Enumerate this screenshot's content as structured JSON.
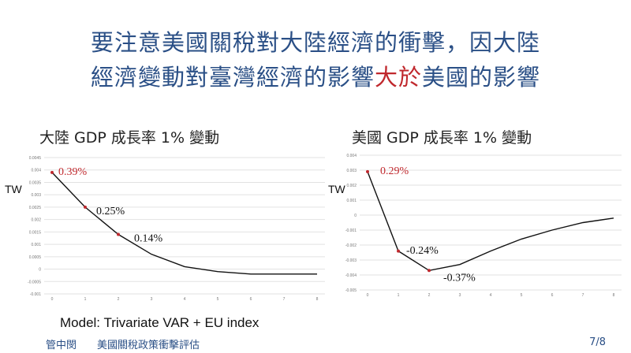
{
  "slide": {
    "title_line1": "要注意美國關稅對大陸經濟的衝擊，因大陸",
    "title_line2_a": "經濟變動對臺灣經濟的影響",
    "title_line2_hl": "大於",
    "title_line2_b": "美國的影響",
    "model_note": "Model: Trivariate VAR + EU index",
    "footer_author": "管中閔",
    "footer_subject": "美國關稅政策衝擊評估",
    "page_number": "7/8"
  },
  "colors": {
    "title": "#2a4f86",
    "highlight": "#c0282d",
    "line": "#111111",
    "marker": "#c0282d",
    "grid": "#e2e2e2"
  },
  "chart_data": [
    {
      "type": "line",
      "title": "大陸  GDP 成長率 1% 變動",
      "ylabel": "TW",
      "x": [
        0,
        1,
        2,
        3,
        4,
        5,
        6,
        7,
        8
      ],
      "x_tick_labels": [
        "0",
        "1",
        "2",
        "3",
        "4",
        "5",
        "6",
        "7",
        "8"
      ],
      "series": [
        {
          "values": [
            0.0039,
            0.0025,
            0.0014,
            0.0006,
            0.0001,
            -0.0001,
            -0.0002,
            -0.0002,
            -0.0002
          ]
        }
      ],
      "ylim": [
        -0.001,
        0.0045
      ],
      "y_ticks": [
        -0.001,
        -0.0005,
        0,
        0.0005,
        0.001,
        0.0015,
        0.002,
        0.0025,
        0.003,
        0.0035,
        0.004,
        0.0045
      ],
      "y_tick_labels": [
        "-0.001",
        "-0.0005",
        "0",
        "0.0005",
        "0.001",
        "0.0015",
        "0.002",
        "0.0025",
        "0.003",
        "0.0035",
        "0.004",
        "0.0045"
      ],
      "grid": true,
      "annotations": [
        {
          "x": 0,
          "y": 0.0039,
          "text": "0.39%",
          "color": "#c0282d"
        },
        {
          "x": 1,
          "y": 0.0025,
          "text": "0.25%",
          "color": "#111111"
        },
        {
          "x": 2,
          "y": 0.0014,
          "text": "0.14%",
          "color": "#111111"
        }
      ]
    },
    {
      "type": "line",
      "title": "美國  GDP 成長率 1% 變動",
      "ylabel": "TW",
      "x": [
        0,
        1,
        2,
        3,
        4,
        5,
        6,
        7,
        8
      ],
      "x_tick_labels": [
        "0",
        "1",
        "2",
        "3",
        "4",
        "5",
        "6",
        "7",
        "8"
      ],
      "series": [
        {
          "values": [
            0.0029,
            -0.0024,
            -0.0037,
            -0.0033,
            -0.0024,
            -0.0016,
            -0.001,
            -0.0005,
            -0.0002
          ]
        }
      ],
      "ylim": [
        -0.005,
        0.004
      ],
      "y_ticks": [
        -0.005,
        -0.004,
        -0.003,
        -0.002,
        -0.001,
        0,
        0.001,
        0.002,
        0.003,
        0.004
      ],
      "y_tick_labels": [
        "-0.005",
        "-0.004",
        "-0.003",
        "-0.002",
        "-0.001",
        "0",
        "0.001",
        "0.002",
        "0.003",
        "0.004"
      ],
      "grid": true,
      "annotations": [
        {
          "x": 0,
          "y": 0.0029,
          "text": "0.29%",
          "color": "#c0282d"
        },
        {
          "x": 1,
          "y": -0.0024,
          "text": "-0.24%",
          "color": "#111111"
        },
        {
          "x": 2,
          "y": -0.0037,
          "text": "-0.37%",
          "color": "#111111"
        }
      ]
    }
  ]
}
